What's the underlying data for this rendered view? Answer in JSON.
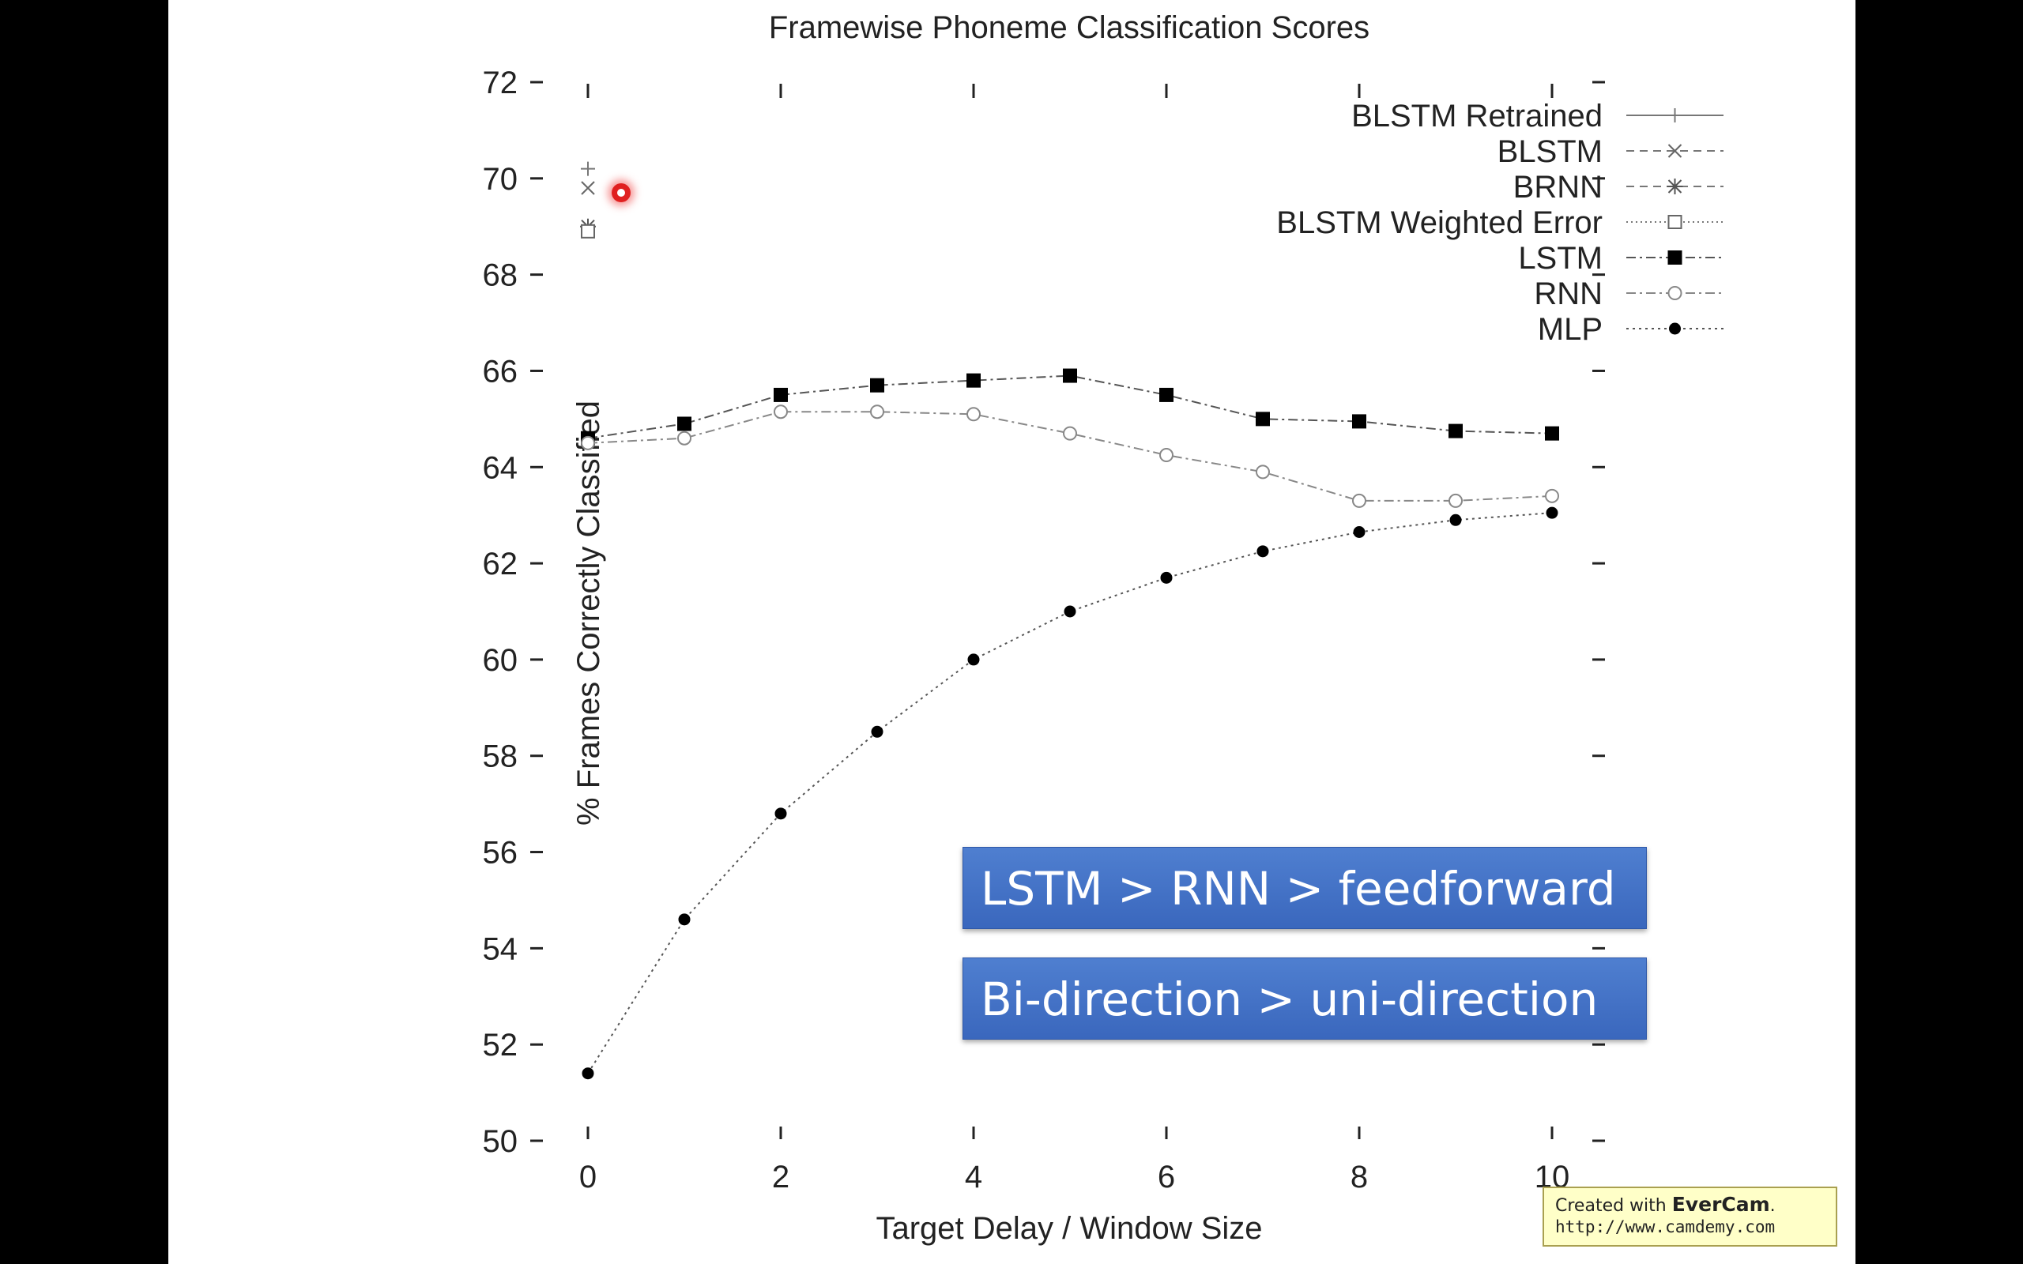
{
  "chart_data": {
    "type": "line",
    "title": "Framewise Phoneme Classification Scores",
    "xlabel": "Target Delay / Window Size",
    "ylabel": "% Frames Correctly Classified",
    "xlim": [
      0,
      10
    ],
    "ylim": [
      50,
      72
    ],
    "xticks": [
      0,
      2,
      4,
      6,
      8,
      10
    ],
    "yticks": [
      50,
      52,
      54,
      56,
      58,
      60,
      62,
      64,
      66,
      68,
      70,
      72
    ],
    "legend_position": "top-right",
    "grid": false,
    "series": [
      {
        "name": "BLSTM Retrained",
        "marker": "plus",
        "line": "solid",
        "x": [
          0
        ],
        "y": [
          70.2
        ]
      },
      {
        "name": "BLSTM",
        "marker": "x",
        "line": "dashed",
        "x": [
          0
        ],
        "y": [
          69.8
        ]
      },
      {
        "name": "BRNN",
        "marker": "star",
        "line": "dashed",
        "x": [
          0
        ],
        "y": [
          69.0
        ]
      },
      {
        "name": "BLSTM Weighted Error",
        "marker": "open-square",
        "line": "dotted",
        "x": [
          0
        ],
        "y": [
          68.9
        ]
      },
      {
        "name": "LSTM",
        "marker": "filled-square",
        "line": "dash-dot",
        "x": [
          0,
          1,
          2,
          3,
          4,
          5,
          6,
          7,
          8,
          9,
          10
        ],
        "y": [
          64.6,
          64.9,
          65.5,
          65.7,
          65.8,
          65.9,
          65.5,
          65.0,
          64.95,
          64.75,
          64.7
        ]
      },
      {
        "name": "RNN",
        "marker": "open-circle",
        "line": "dash-dot",
        "x": [
          0,
          1,
          2,
          3,
          4,
          5,
          6,
          7,
          8,
          9,
          10
        ],
        "y": [
          64.5,
          64.6,
          65.15,
          65.15,
          65.1,
          64.7,
          64.25,
          63.9,
          63.3,
          63.3,
          63.4
        ]
      },
      {
        "name": "MLP",
        "marker": "filled-circle",
        "line": "dotted",
        "x": [
          0,
          1,
          2,
          3,
          4,
          5,
          6,
          7,
          8,
          9,
          10
        ],
        "y": [
          51.4,
          54.6,
          56.8,
          58.5,
          60.0,
          61.0,
          61.7,
          62.25,
          62.65,
          62.9,
          63.05
        ]
      }
    ]
  },
  "callouts": [
    {
      "text": "LSTM > RNN > feedforward"
    },
    {
      "text": "Bi-direction > uni-direction"
    }
  ],
  "watermark": {
    "prefix": "Created with ",
    "brand": "EverCam",
    "suffix": ".",
    "url": "http://www.camdemy.com"
  }
}
